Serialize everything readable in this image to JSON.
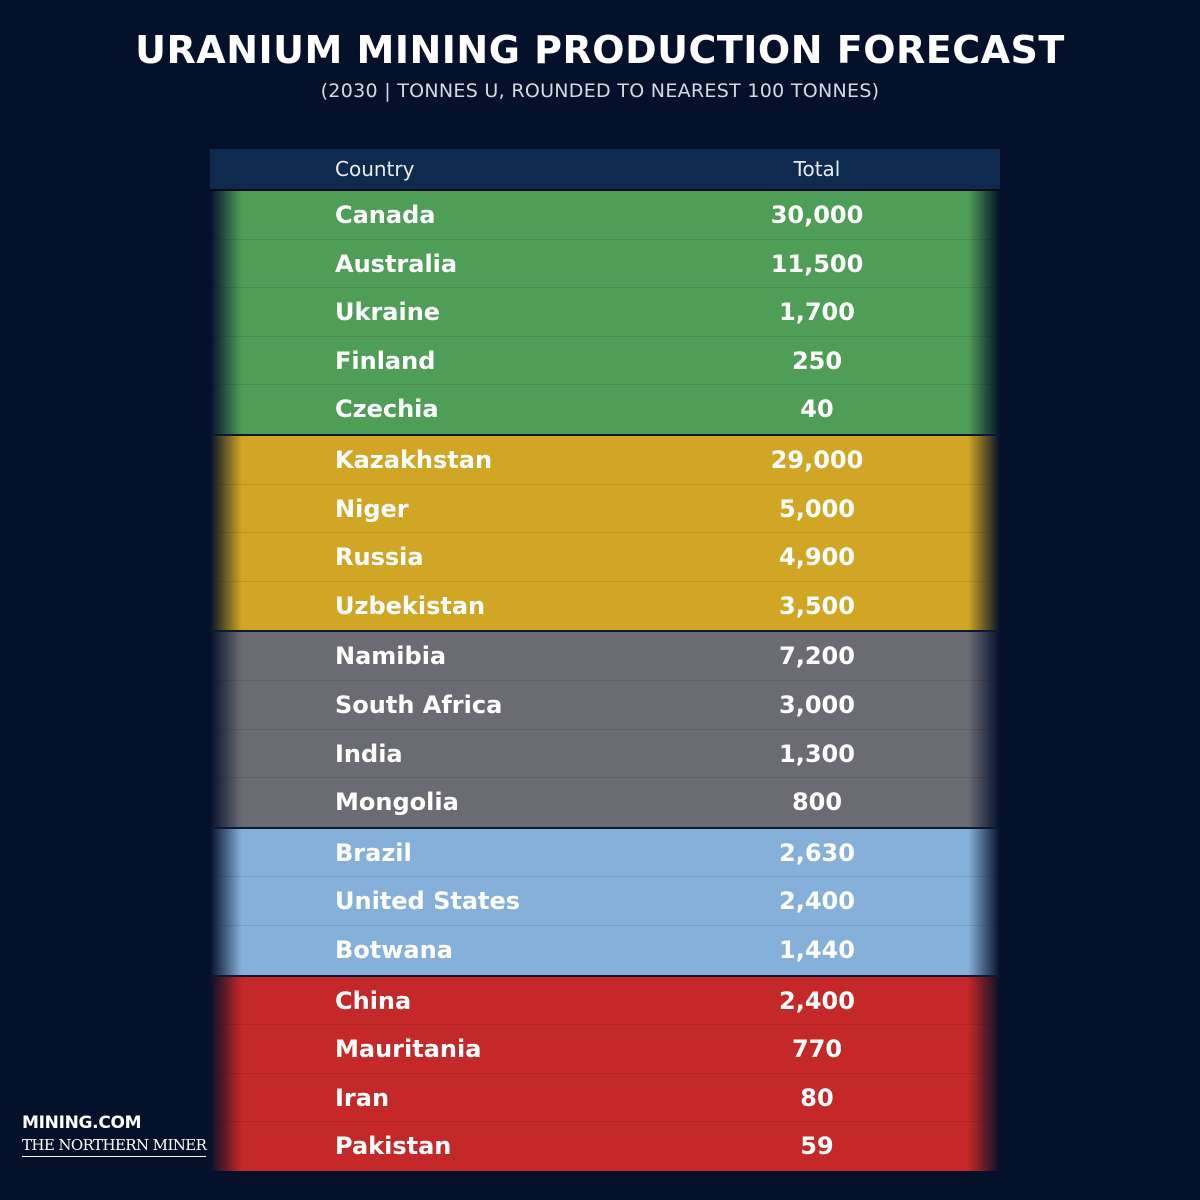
{
  "title": "URANIUM MINING PRODUCTION FORECAST",
  "subtitle": "(2030 | TONNES U, ROUNDED TO NEAREST 100 TONNES)",
  "logo": {
    "mining": "MINING.COM",
    "northern_miner": "THE NORTHERN MINER"
  },
  "colors": {
    "background": "#05102a",
    "header": "#0e2a4e",
    "green": "#4f9e58",
    "gold": "#d0a624",
    "gray": "#6b6b74",
    "blue": "#85b0da",
    "red": "#c42828"
  },
  "chart_data": {
    "type": "table",
    "columns": [
      "Country",
      "Total"
    ],
    "groups": [
      {
        "color": "#4f9e58",
        "rows": [
          {
            "country": "Canada",
            "total": "30,000"
          },
          {
            "country": "Australia",
            "total": "11,500"
          },
          {
            "country": "Ukraine",
            "total": "1,700"
          },
          {
            "country": "Finland",
            "total": "250"
          },
          {
            "country": "Czechia",
            "total": "40"
          }
        ]
      },
      {
        "color": "#d0a624",
        "rows": [
          {
            "country": "Kazakhstan",
            "total": "29,000"
          },
          {
            "country": "Niger",
            "total": "5,000"
          },
          {
            "country": "Russia",
            "total": "4,900"
          },
          {
            "country": "Uzbekistan",
            "total": "3,500"
          }
        ]
      },
      {
        "color": "#6b6b74",
        "rows": [
          {
            "country": "Namibia",
            "total": "7,200"
          },
          {
            "country": "South Africa",
            "total": "3,000"
          },
          {
            "country": "India",
            "total": "1,300"
          },
          {
            "country": "Mongolia",
            "total": "800"
          }
        ]
      },
      {
        "color": "#85b0da",
        "rows": [
          {
            "country": "Brazil",
            "total": "2,630"
          },
          {
            "country": "United States",
            "total": "2,400"
          },
          {
            "country": "Botwana",
            "total": "1,440"
          }
        ]
      },
      {
        "color": "#c42828",
        "rows": [
          {
            "country": "China",
            "total": "2,400"
          },
          {
            "country": "Mauritania",
            "total": "770"
          },
          {
            "country": "Iran",
            "total": "80"
          },
          {
            "country": "Pakistan",
            "total": "59"
          }
        ]
      }
    ]
  }
}
